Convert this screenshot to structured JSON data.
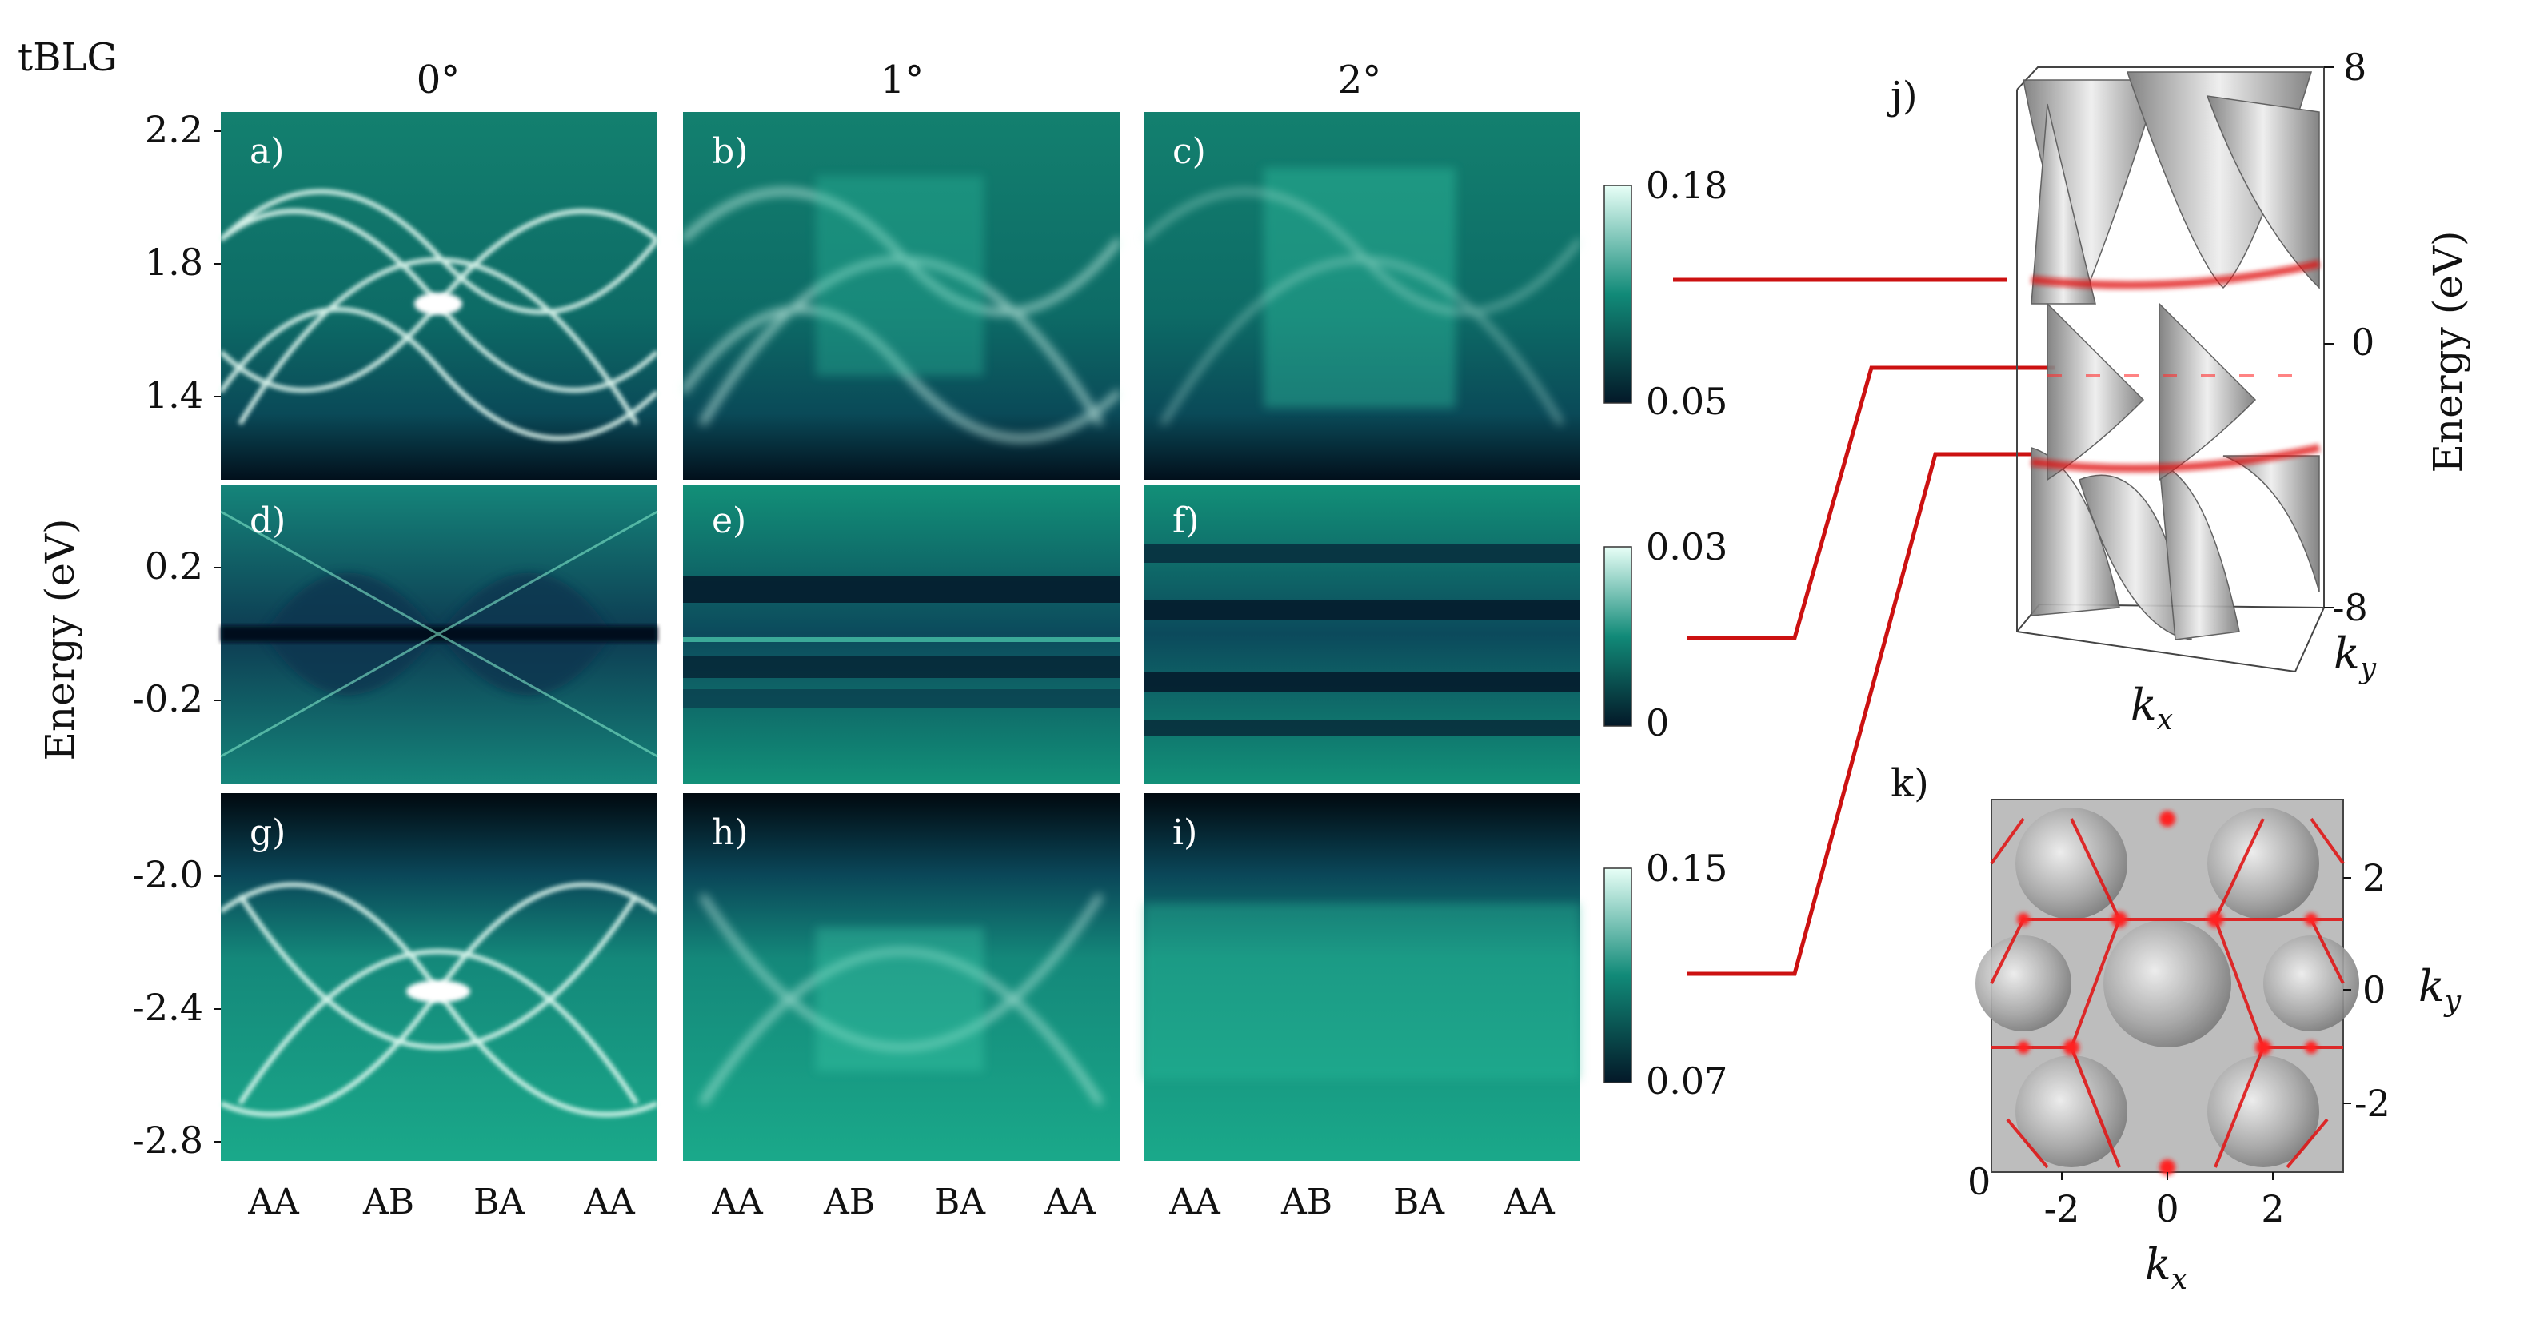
{
  "figure": {
    "system_label": "tBLG",
    "columns": [
      {
        "angle": "0°"
      },
      {
        "angle": "1°"
      },
      {
        "angle": "2°"
      }
    ],
    "panels": [
      "a)",
      "b)",
      "c)",
      "d)",
      "e)",
      "f)",
      "g)",
      "h)",
      "i)",
      "j)",
      "k)"
    ],
    "y_axis_label": "Energy (eV)",
    "x_ticks": [
      "AA",
      "AB",
      "BA",
      "AA"
    ],
    "rows": [
      {
        "yticks": [
          "2.2",
          "1.8",
          "1.4"
        ],
        "colorbar": {
          "max": "0.18",
          "min": "0.05"
        }
      },
      {
        "yticks": [
          "0.2",
          "-0.2"
        ],
        "colorbar": {
          "max": "0.03",
          "min": "0"
        }
      },
      {
        "yticks": [
          "-2.0",
          "-2.4",
          "-2.8"
        ],
        "colorbar": {
          "max": "0.15",
          "min": "0.07"
        }
      }
    ],
    "panel_j": {
      "label": "j)",
      "energy_label": "Energy (eV)",
      "zticks": [
        "8",
        "0",
        "-8"
      ],
      "kx_label": "k",
      "kx_sub": "x",
      "ky_label": "k",
      "ky_sub": "y"
    },
    "panel_k": {
      "label": "k)",
      "xticks": [
        "-2",
        "0",
        "2"
      ],
      "yticks": [
        "2",
        "0",
        "-2"
      ],
      "origin_tick": "0",
      "kx_label": "k",
      "kx_sub": "x",
      "ky_label": "k",
      "ky_sub": "y"
    },
    "colors": {
      "background": "#ffffff",
      "map_low": "#031828",
      "map_mid": "#0f7f6f",
      "map_high": "#e6fff6",
      "connector": "#cc1111",
      "surface": "#9a9a9a"
    }
  }
}
